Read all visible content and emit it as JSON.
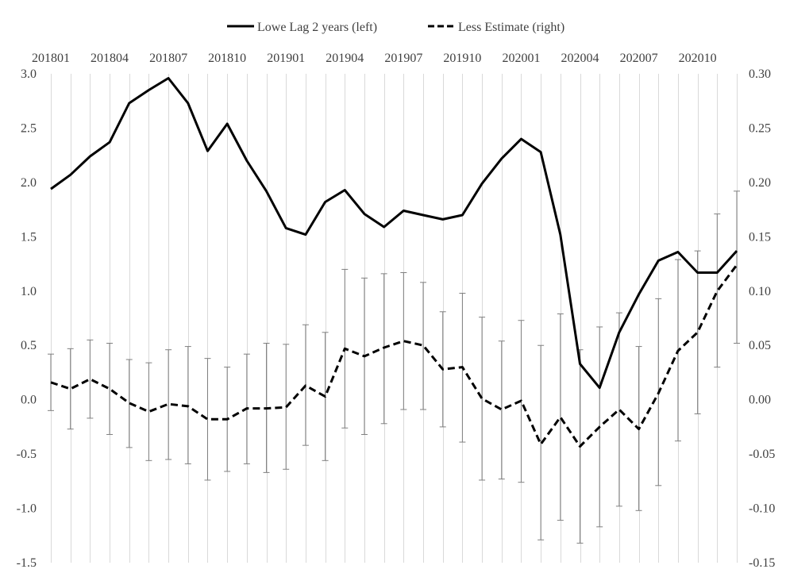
{
  "chart_data": {
    "type": "line",
    "legend": {
      "placement": "top-center",
      "items": [
        {
          "label": "Lowe Lag 2 years (left)",
          "style": "solid"
        },
        {
          "label": "Less Estimate (right)",
          "style": "dashed"
        }
      ]
    },
    "x_ticks_shown": [
      "201801",
      "201804",
      "201807",
      "201810",
      "201901",
      "201904",
      "201907",
      "201910",
      "202001",
      "202004",
      "202007",
      "202010"
    ],
    "categories": [
      "201801",
      "201802",
      "201803",
      "201804",
      "201805",
      "201806",
      "201807",
      "201808",
      "201809",
      "201810",
      "201811",
      "201812",
      "201901",
      "201902",
      "201903",
      "201904",
      "201905",
      "201906",
      "201907",
      "201908",
      "201909",
      "201910",
      "201911",
      "201912",
      "202001",
      "202002",
      "202003",
      "202004",
      "202005",
      "202006",
      "202007",
      "202008",
      "202009",
      "202010",
      "202011",
      "202012"
    ],
    "left_axis": {
      "ylim": [
        -1.5,
        3.0
      ],
      "ticks": [
        "3.0",
        "2.5",
        "2.0",
        "1.5",
        "1.0",
        "0.5",
        "0.0",
        "-0.5",
        "-1.0",
        "-1.5"
      ]
    },
    "right_axis": {
      "ylim": [
        -0.15,
        0.3
      ],
      "ticks": [
        "0.30",
        "0.25",
        "0.20",
        "0.15",
        "0.10",
        "0.05",
        "0.00",
        "-0.05",
        "-0.10",
        "-0.15"
      ]
    },
    "grid": "vertical",
    "series": [
      {
        "name": "Lowe Lag 2 years (left)",
        "axis": "left",
        "values": [
          1.94,
          2.07,
          2.24,
          2.37,
          2.73,
          2.85,
          2.96,
          2.73,
          2.29,
          2.54,
          2.2,
          1.92,
          1.58,
          1.52,
          1.82,
          1.93,
          1.71,
          1.59,
          1.74,
          1.7,
          1.66,
          1.7,
          1.99,
          2.22,
          2.4,
          2.28,
          1.52,
          0.33,
          0.11,
          0.62,
          0.97,
          1.28,
          1.36,
          1.17,
          1.17,
          1.37
        ]
      },
      {
        "name": "Less Estimate (right)",
        "axis": "right",
        "values": [
          0.016,
          0.01,
          0.019,
          0.01,
          -0.003,
          -0.011,
          -0.004,
          -0.006,
          -0.018,
          -0.018,
          -0.008,
          -0.008,
          -0.007,
          0.013,
          0.003,
          0.047,
          0.04,
          0.048,
          0.054,
          0.05,
          0.028,
          0.03,
          0.001,
          -0.009,
          -0.001,
          -0.041,
          -0.016,
          -0.043,
          -0.025,
          -0.009,
          -0.027,
          0.006,
          0.045,
          0.062,
          0.1,
          0.124
        ],
        "error_low": [
          -0.01,
          -0.027,
          -0.017,
          -0.032,
          -0.044,
          -0.056,
          -0.055,
          -0.059,
          -0.074,
          -0.066,
          -0.059,
          -0.067,
          -0.064,
          -0.042,
          -0.056,
          -0.026,
          -0.032,
          -0.022,
          -0.009,
          -0.009,
          -0.025,
          -0.039,
          -0.074,
          -0.073,
          -0.076,
          -0.129,
          -0.111,
          -0.132,
          -0.117,
          -0.098,
          -0.102,
          -0.079,
          -0.038,
          -0.013,
          0.03,
          0.052
        ],
        "error_high": [
          0.042,
          0.047,
          0.055,
          0.052,
          0.037,
          0.034,
          0.046,
          0.049,
          0.038,
          0.03,
          0.042,
          0.052,
          0.051,
          0.069,
          0.062,
          0.12,
          0.112,
          0.116,
          0.117,
          0.108,
          0.081,
          0.098,
          0.076,
          0.054,
          0.073,
          0.05,
          0.079,
          0.046,
          0.067,
          0.08,
          0.049,
          0.093,
          0.129,
          0.137,
          0.171,
          0.192
        ]
      }
    ]
  }
}
